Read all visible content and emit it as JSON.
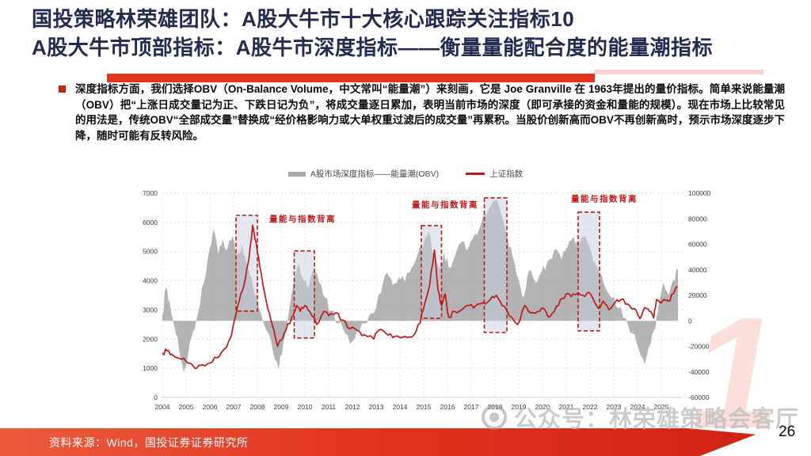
{
  "slide": {
    "title_line1": "国投策略林荣雄团队：A股大牛市十大核心跟踪关注指标10",
    "title_line2": "A股大牛市顶部指标：A股牛市深度指标——衡量量能配合度的能量潮指标",
    "title_color": "#232c50",
    "accent_red": "#e2361f",
    "body_text": "深度指标方面，我们选择OBV（On-Balance Volume，中文常叫“能量潮”）来刻画，它是 Joe Granville 在 1963年提出的量价指标。简单来说能量潮（OBV）把“上涨日成交量记为正、下跌日记为负”，将成交量逐日累加，表明当前市场的深度（即可承接的资金和量能的规模）。现在市场上比较常见的用法是，传统OBV“全部成交量”替换成“经价格影响力或大单权重过滤后的成交量”再累积。当股价创新高而OBV不再创新高时，预示市场深度逐步下降，随时可能有反转风险。",
    "footer_source": "资料来源：Wind，国投证券证券研究所",
    "page_number": "26",
    "watermark": "公众号：林荣雄策略会客厅",
    "bg_numeral": "1"
  },
  "chart_data": {
    "type": "area+line",
    "title": "",
    "legend": [
      {
        "label": "A股市场深度指标——能量潮(OBV)",
        "color": "#a8a8a8",
        "marker": "bar",
        "axis": "right"
      },
      {
        "label": "上证指数",
        "color": "#c01818",
        "marker": "line",
        "axis": "left"
      }
    ],
    "legend_position": "top-center",
    "grid": true,
    "x_range": [
      2004,
      2025.9
    ],
    "x_ticks": [
      "2004",
      "2005",
      "2006",
      "2007",
      "2008",
      "2009",
      "2010",
      "2011",
      "2012",
      "2013",
      "2014",
      "2015",
      "2016",
      "2017",
      "2018",
      "2019",
      "2020",
      "2021",
      "2022",
      "2023",
      "2024",
      "2025"
    ],
    "left_axis": {
      "min": 0,
      "max": 7000,
      "step": 1000
    },
    "right_axis": {
      "min": -60000,
      "max": 100000,
      "step": 20000
    },
    "box_style": {
      "fill": "#c6d0e2",
      "stroke": "#c01818"
    },
    "divergence_boxes": [
      [
        2007.1,
        6240,
        2008.0,
        2960
      ],
      [
        2009.55,
        5020,
        2010.4,
        2035
      ],
      [
        2014.9,
        5890,
        2015.75,
        2715
      ],
      [
        2017.55,
        6840,
        2018.5,
        2225
      ],
      [
        2021.5,
        6350,
        2022.4,
        2280
      ]
    ],
    "annotations": [
      {
        "label": "量能与指数背离",
        "x": 2009.9,
        "y": 6030
      },
      {
        "label": "量能与指数背离",
        "x": 2015.9,
        "y": 6510
      },
      {
        "label": "量能与指数背离",
        "x": 2022.6,
        "y": 6710
      }
    ],
    "series": [
      {
        "name": "A股市场深度指标——能量潮(OBV)",
        "axis": "right",
        "type": "area",
        "color": "#a8a8a8",
        "points": [
          [
            2004.0,
            4000
          ],
          [
            2004.15,
            26000
          ],
          [
            2004.3,
            15000
          ],
          [
            2004.5,
            -4000
          ],
          [
            2004.7,
            -22000
          ],
          [
            2004.9,
            -40000
          ],
          [
            2005.1,
            -24000
          ],
          [
            2005.3,
            -8000
          ],
          [
            2005.5,
            6000
          ],
          [
            2005.75,
            30000
          ],
          [
            2006.0,
            58000
          ],
          [
            2006.15,
            72000
          ],
          [
            2006.35,
            52000
          ],
          [
            2006.55,
            64000
          ],
          [
            2006.75,
            57000
          ],
          [
            2006.95,
            66000
          ],
          [
            2007.15,
            52000
          ],
          [
            2007.35,
            60000
          ],
          [
            2007.55,
            44000
          ],
          [
            2007.75,
            34000
          ],
          [
            2007.95,
            20000
          ],
          [
            2008.15,
            6000
          ],
          [
            2008.4,
            -8000
          ],
          [
            2008.65,
            -24000
          ],
          [
            2008.9,
            -38000
          ],
          [
            2009.1,
            -16000
          ],
          [
            2009.3,
            4000
          ],
          [
            2009.5,
            26000
          ],
          [
            2009.7,
            44000
          ],
          [
            2009.9,
            34000
          ],
          [
            2010.1,
            26000
          ],
          [
            2010.35,
            40000
          ],
          [
            2010.6,
            30000
          ],
          [
            2010.85,
            18000
          ],
          [
            2011.1,
            8000
          ],
          [
            2011.4,
            -2000
          ],
          [
            2011.7,
            -10000
          ],
          [
            2012.0,
            -16000
          ],
          [
            2012.3,
            -8000
          ],
          [
            2012.6,
            -2000
          ],
          [
            2012.9,
            6000
          ],
          [
            2013.2,
            22000
          ],
          [
            2013.45,
            38000
          ],
          [
            2013.7,
            28000
          ],
          [
            2013.95,
            34000
          ],
          [
            2014.2,
            30000
          ],
          [
            2014.5,
            42000
          ],
          [
            2014.75,
            52000
          ],
          [
            2015.0,
            60000
          ],
          [
            2015.2,
            70000
          ],
          [
            2015.45,
            52000
          ],
          [
            2015.65,
            40000
          ],
          [
            2015.85,
            54000
          ],
          [
            2016.05,
            42000
          ],
          [
            2016.3,
            50000
          ],
          [
            2016.6,
            62000
          ],
          [
            2016.9,
            58000
          ],
          [
            2017.15,
            68000
          ],
          [
            2017.45,
            78000
          ],
          [
            2017.75,
            88000
          ],
          [
            2018.0,
            94000
          ],
          [
            2018.25,
            84000
          ],
          [
            2018.5,
            68000
          ],
          [
            2018.75,
            50000
          ],
          [
            2019.0,
            32000
          ],
          [
            2019.2,
            18000
          ],
          [
            2019.45,
            40000
          ],
          [
            2019.7,
            30000
          ],
          [
            2019.95,
            38000
          ],
          [
            2020.2,
            46000
          ],
          [
            2020.5,
            56000
          ],
          [
            2020.8,
            48000
          ],
          [
            2021.05,
            58000
          ],
          [
            2021.3,
            66000
          ],
          [
            2021.55,
            60000
          ],
          [
            2021.8,
            66000
          ],
          [
            2022.05,
            54000
          ],
          [
            2022.3,
            42000
          ],
          [
            2022.6,
            28000
          ],
          [
            2022.9,
            18000
          ],
          [
            2023.2,
            10000
          ],
          [
            2023.5,
            2000
          ],
          [
            2023.8,
            -10000
          ],
          [
            2024.05,
            -22000
          ],
          [
            2024.3,
            -34000
          ],
          [
            2024.55,
            -18000
          ],
          [
            2024.75,
            -6000
          ],
          [
            2024.9,
            14000
          ],
          [
            2025.1,
            30000
          ],
          [
            2025.3,
            20000
          ],
          [
            2025.5,
            32000
          ],
          [
            2025.7,
            40000
          ]
        ]
      },
      {
        "name": "上证指数",
        "axis": "left",
        "type": "line",
        "color": "#c01818",
        "points": [
          [
            2004.0,
            1520
          ],
          [
            2004.2,
            1600
          ],
          [
            2004.4,
            1480
          ],
          [
            2004.7,
            1340
          ],
          [
            2005.0,
            1240
          ],
          [
            2005.25,
            1130
          ],
          [
            2005.45,
            1010
          ],
          [
            2005.7,
            1120
          ],
          [
            2006.0,
            1180
          ],
          [
            2006.3,
            1360
          ],
          [
            2006.6,
            1650
          ],
          [
            2006.9,
            2100
          ],
          [
            2007.1,
            2850
          ],
          [
            2007.3,
            3550
          ],
          [
            2007.5,
            4100
          ],
          [
            2007.65,
            4800
          ],
          [
            2007.8,
            5900
          ],
          [
            2007.95,
            5300
          ],
          [
            2008.1,
            4500
          ],
          [
            2008.3,
            3600
          ],
          [
            2008.5,
            2900
          ],
          [
            2008.7,
            2300
          ],
          [
            2008.85,
            1750
          ],
          [
            2009.0,
            1950
          ],
          [
            2009.2,
            2300
          ],
          [
            2009.45,
            2750
          ],
          [
            2009.65,
            3150
          ],
          [
            2009.8,
            2950
          ],
          [
            2010.0,
            3150
          ],
          [
            2010.2,
            2950
          ],
          [
            2010.5,
            2500
          ],
          [
            2010.8,
            2950
          ],
          [
            2011.0,
            2800
          ],
          [
            2011.3,
            2900
          ],
          [
            2011.6,
            2650
          ],
          [
            2011.9,
            2350
          ],
          [
            2012.2,
            2300
          ],
          [
            2012.5,
            2150
          ],
          [
            2012.9,
            2000
          ],
          [
            2013.1,
            2300
          ],
          [
            2013.4,
            2200
          ],
          [
            2013.7,
            2050
          ],
          [
            2014.0,
            2050
          ],
          [
            2014.3,
            2050
          ],
          [
            2014.6,
            2150
          ],
          [
            2014.85,
            2550
          ],
          [
            2015.05,
            3250
          ],
          [
            2015.25,
            3850
          ],
          [
            2015.45,
            5050
          ],
          [
            2015.6,
            3700
          ],
          [
            2015.75,
            3150
          ],
          [
            2015.9,
            3550
          ],
          [
            2016.05,
            2750
          ],
          [
            2016.3,
            2950
          ],
          [
            2016.6,
            3000
          ],
          [
            2016.9,
            3150
          ],
          [
            2017.2,
            3150
          ],
          [
            2017.5,
            3250
          ],
          [
            2017.8,
            3350
          ],
          [
            2018.05,
            3500
          ],
          [
            2018.3,
            3150
          ],
          [
            2018.6,
            2800
          ],
          [
            2018.95,
            2500
          ],
          [
            2019.25,
            3150
          ],
          [
            2019.5,
            2900
          ],
          [
            2019.8,
            2950
          ],
          [
            2020.05,
            3050
          ],
          [
            2020.25,
            2750
          ],
          [
            2020.5,
            2950
          ],
          [
            2020.75,
            3350
          ],
          [
            2021.0,
            3550
          ],
          [
            2021.2,
            3450
          ],
          [
            2021.45,
            3550
          ],
          [
            2021.7,
            3500
          ],
          [
            2021.95,
            3600
          ],
          [
            2022.2,
            3250
          ],
          [
            2022.35,
            3050
          ],
          [
            2022.55,
            3300
          ],
          [
            2022.8,
            3000
          ],
          [
            2023.05,
            3250
          ],
          [
            2023.3,
            3350
          ],
          [
            2023.6,
            3200
          ],
          [
            2023.85,
            3050
          ],
          [
            2024.1,
            2700
          ],
          [
            2024.3,
            3080
          ],
          [
            2024.5,
            2950
          ],
          [
            2024.68,
            2720
          ],
          [
            2024.8,
            3350
          ],
          [
            2024.95,
            3250
          ],
          [
            2025.1,
            3350
          ],
          [
            2025.3,
            3300
          ],
          [
            2025.5,
            3550
          ],
          [
            2025.68,
            3800
          ]
        ]
      }
    ]
  }
}
